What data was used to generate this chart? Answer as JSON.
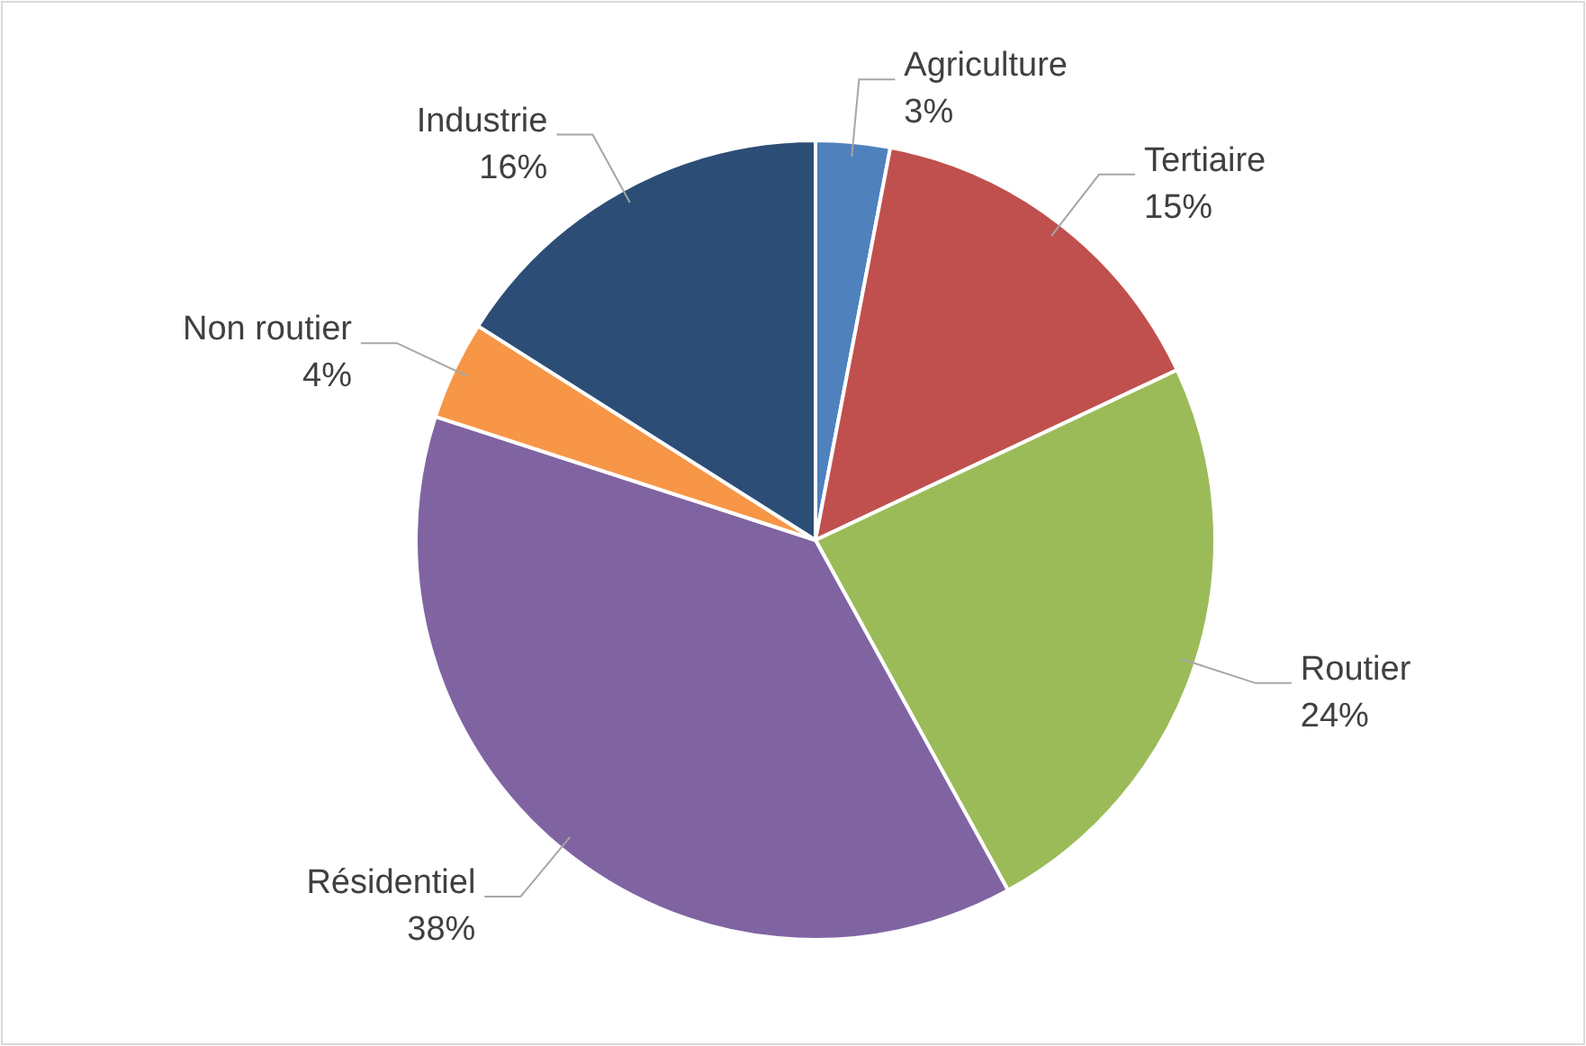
{
  "chart_data": {
    "type": "pie",
    "categories": [
      "Agriculture",
      "Tertiaire",
      "Routier",
      "Résidentiel",
      "Non routier",
      "Industrie"
    ],
    "values": [
      3,
      15,
      24,
      38,
      4,
      16
    ],
    "value_labels": [
      "3%",
      "15%",
      "24%",
      "38%",
      "4%",
      "16%"
    ],
    "colors": [
      "#4f81bd",
      "#c0504d",
      "#9bbb59",
      "#8064a2",
      "#f79646",
      "#2c4d75"
    ]
  }
}
